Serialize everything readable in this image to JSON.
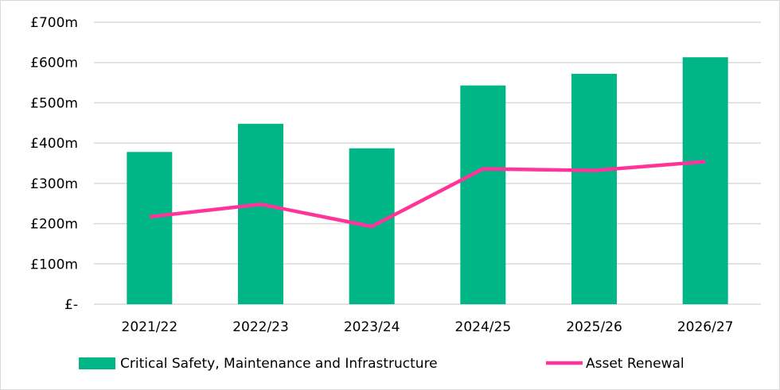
{
  "chart_data": {
    "type": "bar",
    "categories": [
      "2021/22",
      "2022/23",
      "2023/24",
      "2024/25",
      "2025/26",
      "2026/27"
    ],
    "series": [
      {
        "name": "Critical Safety, Maintenance and Infrastructure",
        "kind": "bar",
        "color": "#00B686",
        "values": [
          378,
          448,
          387,
          543,
          572,
          613
        ]
      },
      {
        "name": "Asset Renewal",
        "kind": "line",
        "color": "#FF3399",
        "values": [
          217,
          248,
          193,
          336,
          332,
          354
        ]
      }
    ],
    "yticks": [
      {
        "value": 0,
        "label": "£-"
      },
      {
        "value": 100,
        "label": "£100m"
      },
      {
        "value": 200,
        "label": "£200m"
      },
      {
        "value": 300,
        "label": "£300m"
      },
      {
        "value": 400,
        "label": "£400m"
      },
      {
        "value": 500,
        "label": "£500m"
      },
      {
        "value": 600,
        "label": "£600m"
      },
      {
        "value": 700,
        "label": "£700m"
      }
    ],
    "ylim": [
      0,
      700
    ],
    "unit": "£m",
    "grid": true,
    "legend": "bottom",
    "title": "",
    "xlabel": "",
    "ylabel": ""
  }
}
